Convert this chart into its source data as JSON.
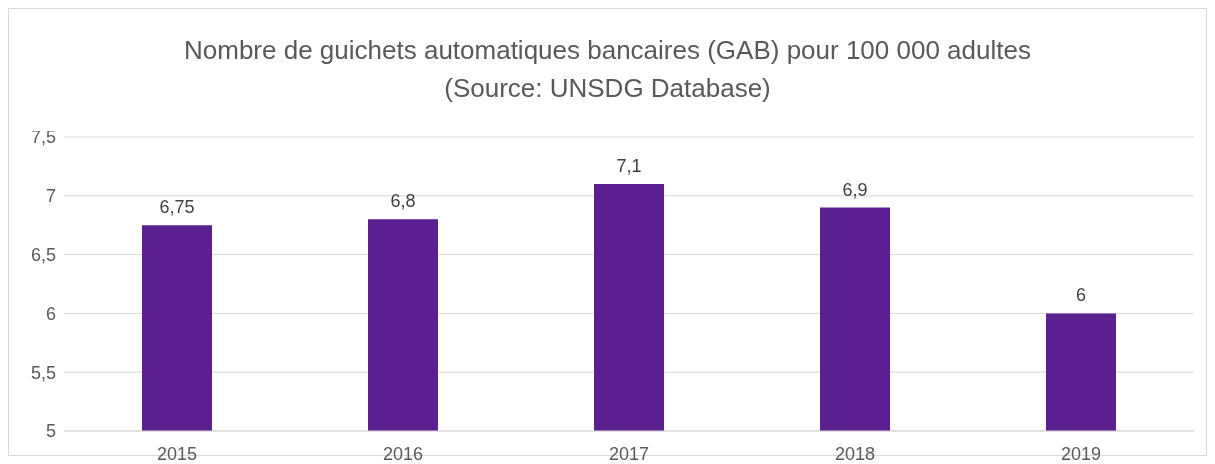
{
  "chart_data": {
    "type": "bar",
    "title": "Nombre de guichets automatiques bancaires (GAB) pour 100 000 adultes\n(Source: UNSDG Database)",
    "categories": [
      "2015",
      "2016",
      "2017",
      "2018",
      "2019"
    ],
    "values": [
      6.75,
      6.8,
      7.1,
      6.9,
      6
    ],
    "value_labels": [
      "6,75",
      "6,8",
      "7,1",
      "6,9",
      "6"
    ],
    "color": "#5b1f8f",
    "ylim": [
      5,
      7.5
    ],
    "yticks": [
      5,
      {
        "value": 5.5,
        "label": "5,5"
      },
      6,
      {
        "value": 6.5,
        "label": "6,5"
      },
      7,
      {
        "value": 7.5,
        "label": "7,5"
      }
    ],
    "grid": "y",
    "legend": false
  }
}
